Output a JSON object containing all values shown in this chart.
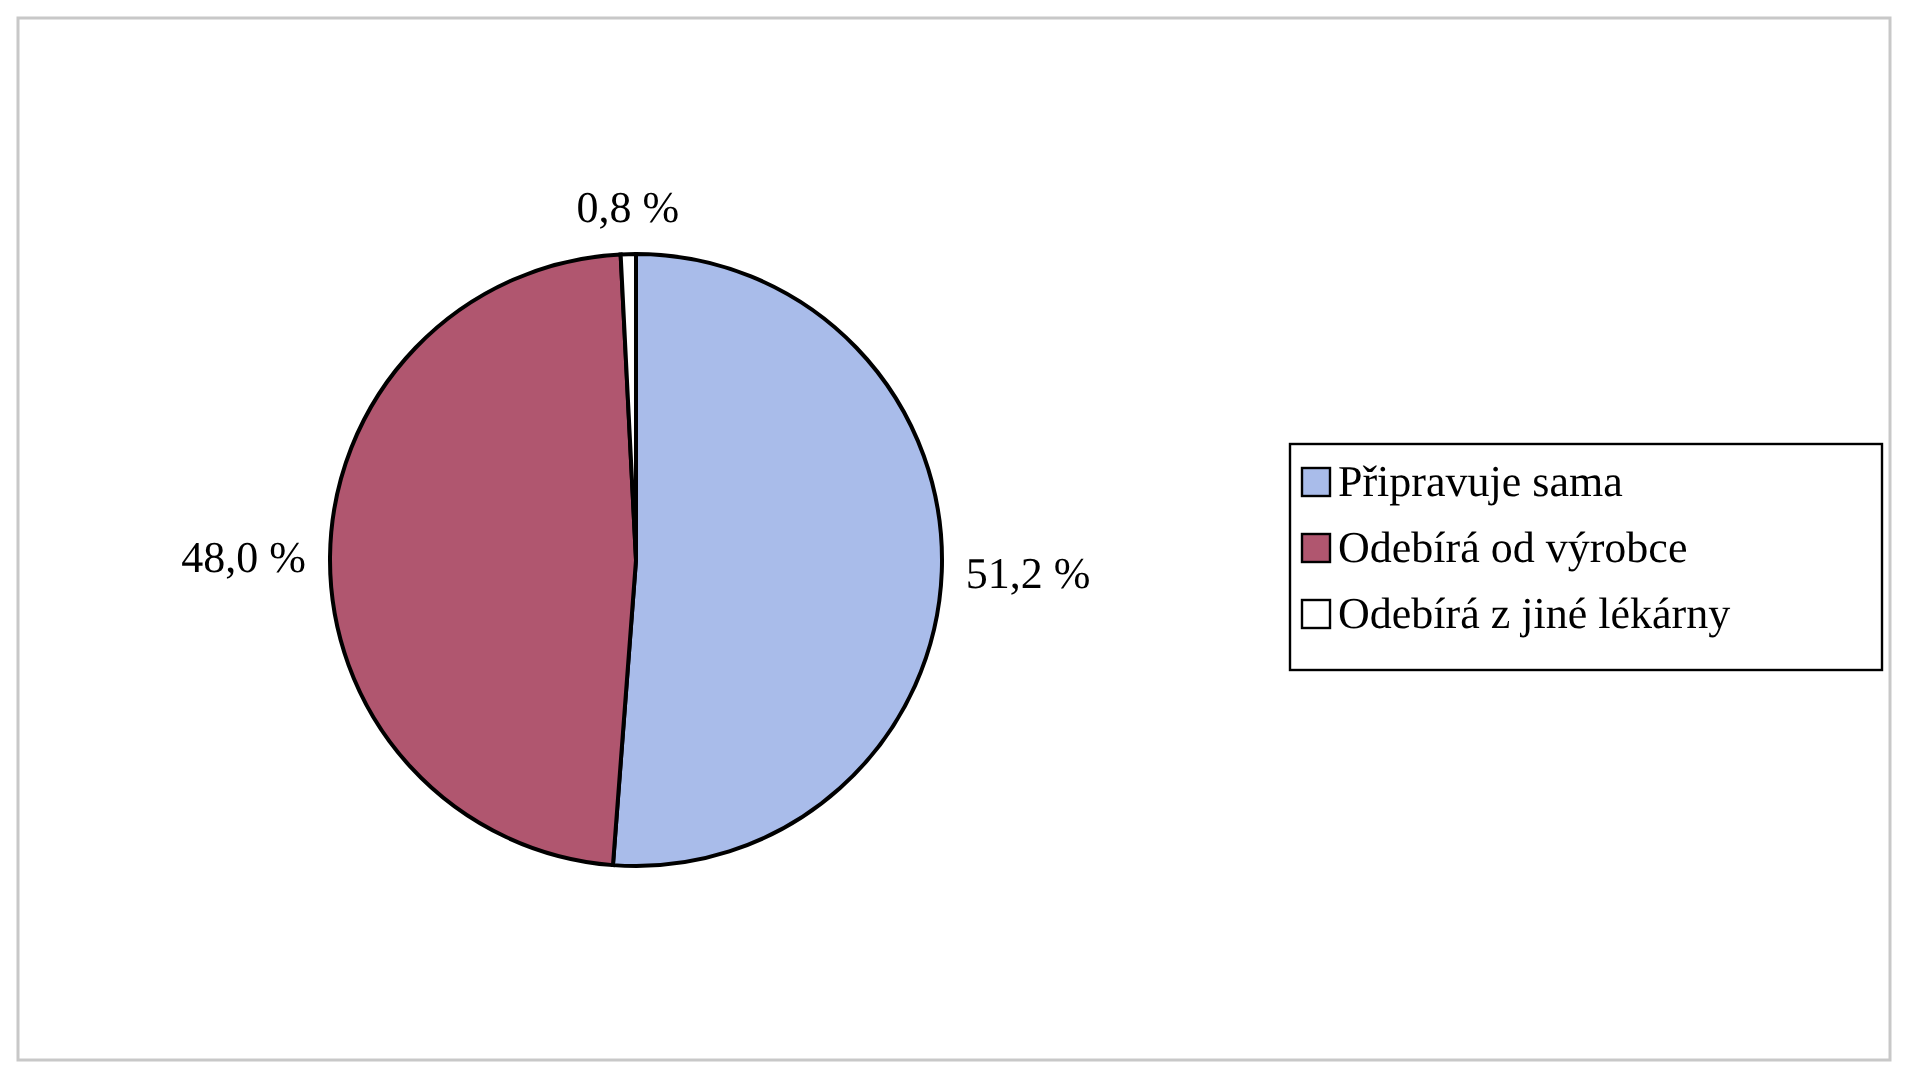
{
  "chart_data": {
    "type": "pie",
    "categories": [
      "Připravuje sama",
      "Odebírá od výrobce",
      "Odebírá z jiné lékárny"
    ],
    "values": [
      51.2,
      48.0,
      0.8
    ],
    "colors": [
      "#a9bcea",
      "#b0566f",
      "#ffffff"
    ],
    "value_labels": [
      "51,2 %",
      "48,0 %",
      "0,8 %"
    ],
    "legend": "right"
  }
}
